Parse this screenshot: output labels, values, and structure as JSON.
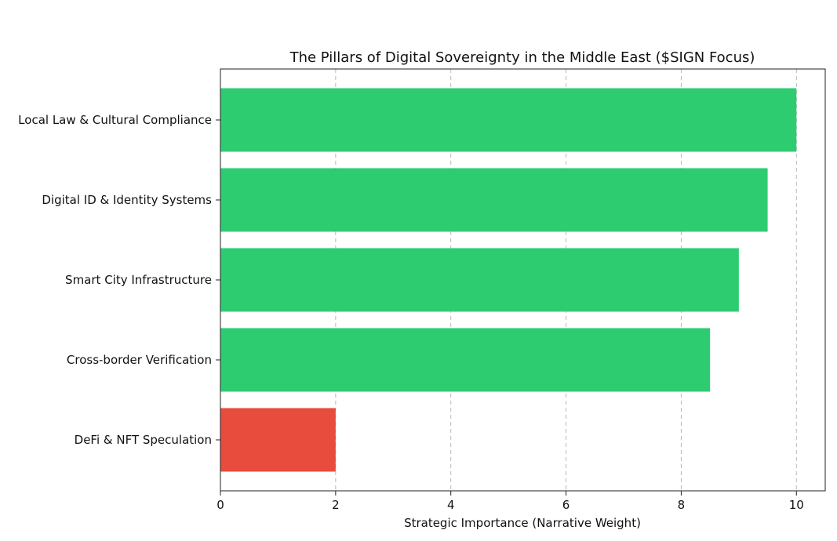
{
  "chart_data": {
    "type": "bar",
    "orientation": "horizontal",
    "title": "The Pillars of Digital Sovereignty in the Middle East ($SIGN Focus)",
    "xlabel": "Strategic Importance (Narrative Weight)",
    "ylabel": "",
    "xlim": [
      0,
      10.5
    ],
    "xticks": [
      0,
      2,
      4,
      6,
      8,
      10
    ],
    "grid": "x-dashed",
    "categories": [
      "Local Law & Cultural Compliance",
      "Digital ID & Identity Systems",
      "Smart City Infrastructure",
      "Cross-border Verification",
      "DeFi & NFT Speculation"
    ],
    "values": [
      10,
      9.5,
      9,
      8.5,
      2
    ],
    "colors": [
      "#2ecc71",
      "#2ecc71",
      "#2ecc71",
      "#2ecc71",
      "#e74c3c"
    ]
  }
}
